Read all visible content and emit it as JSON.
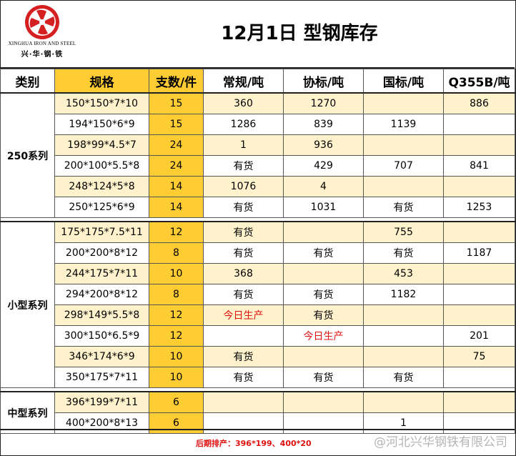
{
  "header": {
    "logo_en": "XINGHUA IRON AND STEEL",
    "logo_cn": "兴·华·钢·铁",
    "title": "12月1日  型钢库存"
  },
  "columns": [
    "类别",
    "规格",
    "支数/件",
    "常规/吨",
    "协标/吨",
    "国标/吨",
    "Q355B/吨"
  ],
  "groups": [
    {
      "category": "250系列",
      "rows": [
        {
          "spec": "150*150*7*10",
          "pcs": "15",
          "regular": "360",
          "assoc": "1270",
          "national": "",
          "q355b": "886"
        },
        {
          "spec": "194*150*6*9",
          "pcs": "15",
          "regular": "1286",
          "assoc": "839",
          "national": "1139",
          "q355b": ""
        },
        {
          "spec": "198*99*4.5*7",
          "pcs": "24",
          "regular": "1",
          "assoc": "936",
          "national": "",
          "q355b": ""
        },
        {
          "spec": "200*100*5.5*8",
          "pcs": "24",
          "regular": "有货",
          "assoc": "429",
          "national": "707",
          "q355b": "841"
        },
        {
          "spec": "248*124*5*8",
          "pcs": "14",
          "regular": "1076",
          "assoc": "4",
          "national": "",
          "q355b": ""
        },
        {
          "spec": "250*125*6*9",
          "pcs": "14",
          "regular": "有货",
          "assoc": "1031",
          "national": "有货",
          "q355b": "1253"
        }
      ]
    },
    {
      "category": "小型系列",
      "rows": [
        {
          "spec": "175*175*7.5*11",
          "pcs": "12",
          "regular": "有货",
          "assoc": "",
          "national": "755",
          "q355b": ""
        },
        {
          "spec": "200*200*8*12",
          "pcs": "8",
          "regular": "有货",
          "assoc": "有货",
          "national": "有货",
          "q355b": "1187"
        },
        {
          "spec": "244*175*7*11",
          "pcs": "10",
          "regular": "368",
          "assoc": "",
          "national": "453",
          "q355b": ""
        },
        {
          "spec": "294*200*8*12",
          "pcs": "8",
          "regular": "有货",
          "assoc": "有货",
          "national": "1182",
          "q355b": ""
        },
        {
          "spec": "298*149*5.5*8",
          "pcs": "12",
          "regular": "今日生产",
          "assoc": "有货",
          "national": "",
          "q355b": ""
        },
        {
          "spec": "300*150*6.5*9",
          "pcs": "12",
          "regular": "",
          "assoc": "今日生产",
          "national": "",
          "q355b": "201"
        },
        {
          "spec": "346*174*6*9",
          "pcs": "10",
          "regular": "有货",
          "assoc": "",
          "national": "",
          "q355b": "75"
        },
        {
          "spec": "350*175*7*11",
          "pcs": "10",
          "regular": "有货",
          "assoc": "有货",
          "national": "有货",
          "q355b": ""
        }
      ]
    },
    {
      "category": "中型系列",
      "rows": [
        {
          "spec": "396*199*7*11",
          "pcs": "6",
          "regular": "",
          "assoc": "",
          "national": "",
          "q355b": ""
        },
        {
          "spec": "400*200*8*13",
          "pcs": "6",
          "regular": "",
          "assoc": "",
          "national": "1",
          "q355b": ""
        }
      ]
    }
  ],
  "highlight_text": "今日生产",
  "footer": {
    "note": "后期排产：396*199、400*20",
    "watermark": "@河北兴华钢铁有限公司"
  },
  "colors": {
    "accent_orange": "#ffcc33",
    "row_tint": "#fff2cc",
    "alert_red": "#e01010",
    "logo_red": "#d42020"
  }
}
